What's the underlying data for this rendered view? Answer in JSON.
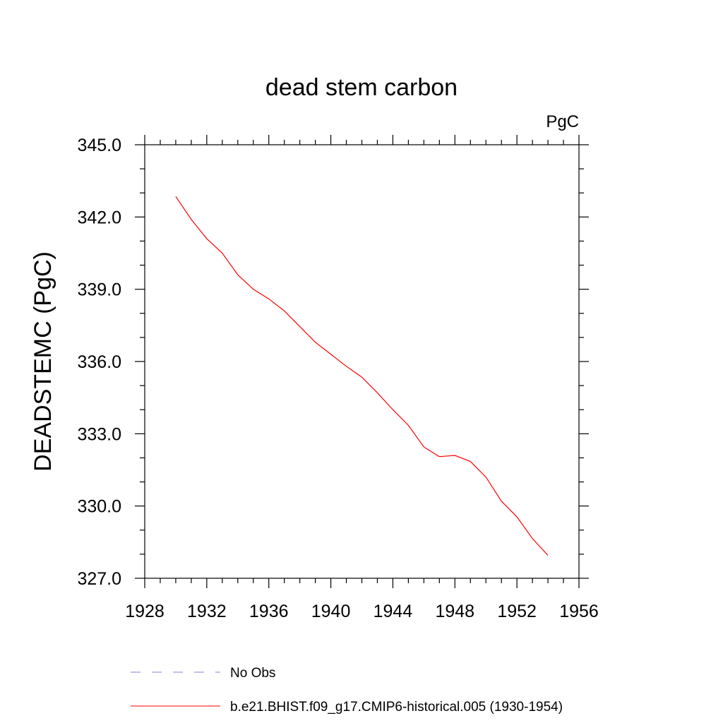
{
  "chart_data": {
    "type": "line",
    "title": "dead stem carbon",
    "units": "PgC",
    "xlabel": "",
    "ylabel": "DEADSTEMC  (PgC)",
    "xlim": [
      1928,
      1956
    ],
    "ylim": [
      327.0,
      345.0
    ],
    "x_ticks": [
      "1928",
      "1932",
      "1936",
      "1940",
      "1944",
      "1948",
      "1952",
      "1956"
    ],
    "x_tick_values": [
      1928,
      1932,
      1936,
      1940,
      1944,
      1948,
      1952,
      1956
    ],
    "y_ticks": [
      "327.0",
      "330.0",
      "333.0",
      "336.0",
      "339.0",
      "342.0",
      "345.0"
    ],
    "y_tick_values": [
      327.0,
      330.0,
      333.0,
      336.0,
      339.0,
      342.0,
      345.0
    ],
    "grid": false,
    "legend_position": "bottom",
    "series": [
      {
        "name": "b.e21.BHIST.f09_g17.CMIP6-historical.005 (1930-1954)",
        "color": "#ff0000",
        "style": "solid",
        "x": [
          1930,
          1931,
          1932,
          1933,
          1934,
          1935,
          1936,
          1937,
          1938,
          1939,
          1940,
          1941,
          1942,
          1943,
          1944,
          1945,
          1946,
          1947,
          1948,
          1949,
          1950,
          1951,
          1952,
          1953,
          1954
        ],
        "values": [
          342.85,
          341.9,
          341.1,
          340.5,
          339.6,
          339.0,
          338.6,
          338.1,
          337.45,
          336.8,
          336.3,
          335.8,
          335.35,
          334.7,
          334.0,
          333.35,
          332.45,
          332.05,
          332.1,
          331.85,
          331.2,
          330.2,
          329.55,
          328.65,
          327.95
        ]
      }
    ],
    "legend": [
      {
        "label": "No Obs",
        "color": "#8a7fd0",
        "style": "dashed"
      },
      {
        "label": "b.e21.BHIST.f09_g17.CMIP6-historical.005 (1930-1954)",
        "color": "#ff0000",
        "style": "solid"
      }
    ]
  }
}
